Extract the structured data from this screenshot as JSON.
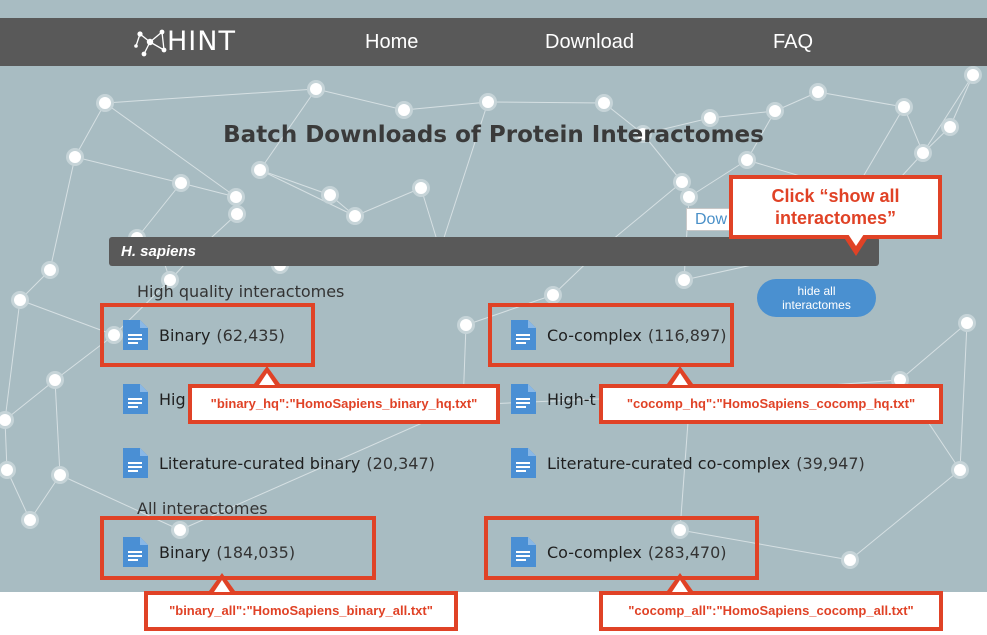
{
  "brand": {
    "logo_text": "HINT"
  },
  "nav": {
    "home": "Home",
    "download": "Download",
    "faq": "FAQ"
  },
  "page_title": "Batch Downloads of Protein Interactomes",
  "download_button_partial": "Dow",
  "species": "H. sapiens",
  "toggle_button": "hide all interactomes",
  "sections": {
    "high_quality": {
      "heading": "High quality interactomes",
      "items": [
        {
          "label": "Binary",
          "count": "(62,435)"
        },
        {
          "label": "Co-complex",
          "count": "(116,897)"
        },
        {
          "label": "Hig",
          "count": ""
        },
        {
          "label": "High-t",
          "count": ""
        },
        {
          "label": "Literature-curated binary",
          "count": "(20,347)"
        },
        {
          "label": "Literature-curated co-complex",
          "count": "(39,947)"
        }
      ]
    },
    "all": {
      "heading": "All interactomes",
      "items": [
        {
          "label": "Binary",
          "count": "(184,035)"
        },
        {
          "label": "Co-complex",
          "count": "(283,470)"
        }
      ]
    }
  },
  "annotations": {
    "instruction": "Click “show all interactomes”",
    "binary_hq": "\"binary_hq\":\"HomoSapiens_binary_hq.txt\"",
    "cocomp_hq": "\"cocomp_hq\":\"HomoSapiens_cocomp_hq.txt\"",
    "binary_all": "\"binary_all\":\"HomoSapiens_binary_all.txt\"",
    "cocomp_all": "\"cocomp_all\":\"HomoSapiens_cocomp_all.txt\""
  },
  "icons": {
    "file": "file-document-icon",
    "logo": "network-logo-icon"
  },
  "colors": {
    "navbar": "#595959",
    "background": "#a8bcc2",
    "accent_blue": "#4a90d0",
    "file_icon": "#4a8fd4",
    "annotation_red": "#e04226"
  }
}
